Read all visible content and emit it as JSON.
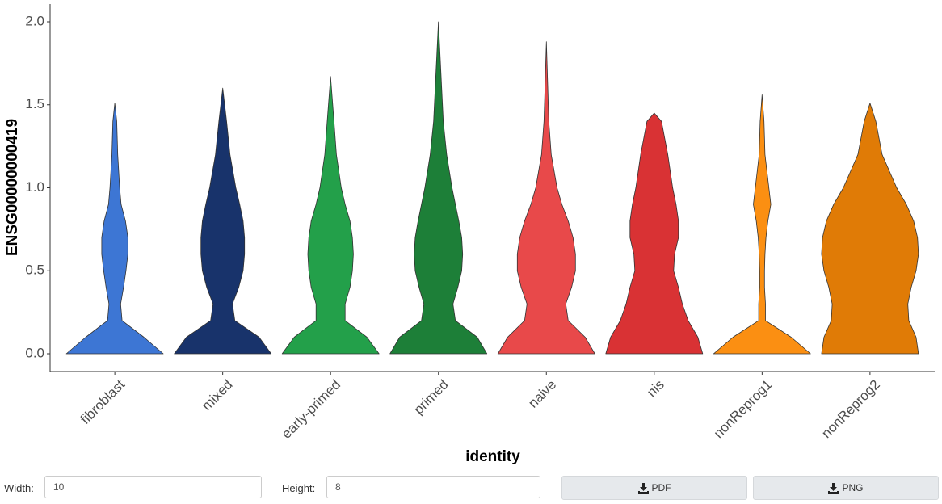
{
  "chart_data": {
    "type": "violin",
    "x_label": "identity",
    "y_label": "ENSG00000000419",
    "categories": [
      "fibroblast",
      "mixed",
      "early-primed",
      "primed",
      "naive",
      "nis",
      "nonReprog1",
      "nonReprog2"
    ],
    "colors": [
      "#3d76d4",
      "#18336b",
      "#23a04a",
      "#1d7f38",
      "#e8494a",
      "#d93234",
      "#fb8f12",
      "#e07b06"
    ],
    "density_y": [
      0,
      0.1,
      0.2,
      0.3,
      0.4,
      0.5,
      0.6,
      0.7,
      0.8,
      0.9,
      1.0,
      1.2,
      1.4
    ],
    "violins": [
      {
        "max": 1.51,
        "widths": [
          1,
          0.6,
          0.15,
          0.12,
          0.18,
          0.23,
          0.27,
          0.27,
          0.22,
          0.13,
          0.1,
          0.06,
          0.04
        ]
      },
      {
        "max": 1.6,
        "widths": [
          1,
          0.75,
          0.25,
          0.2,
          0.33,
          0.42,
          0.45,
          0.45,
          0.42,
          0.35,
          0.27,
          0.15,
          0.08
        ]
      },
      {
        "max": 1.67,
        "widths": [
          1,
          0.75,
          0.3,
          0.3,
          0.4,
          0.45,
          0.47,
          0.45,
          0.4,
          0.3,
          0.22,
          0.12,
          0.07
        ]
      },
      {
        "max": 2.0,
        "widths": [
          1,
          0.8,
          0.35,
          0.3,
          0.4,
          0.48,
          0.5,
          0.48,
          0.42,
          0.35,
          0.28,
          0.17,
          0.1
        ]
      },
      {
        "max": 1.88,
        "widths": [
          1,
          0.8,
          0.45,
          0.4,
          0.52,
          0.6,
          0.6,
          0.55,
          0.45,
          0.32,
          0.22,
          0.1,
          0.05
        ]
      },
      {
        "max": 1.45,
        "widths": [
          1,
          0.9,
          0.7,
          0.58,
          0.5,
          0.4,
          0.42,
          0.5,
          0.5,
          0.45,
          0.38,
          0.28,
          0.15
        ]
      },
      {
        "max": 1.56,
        "widths": [
          1,
          0.6,
          0.07,
          0.07,
          0.05,
          0.05,
          0.06,
          0.08,
          0.12,
          0.18,
          0.14,
          0.06,
          0.04
        ]
      },
      {
        "max": 1.51,
        "widths": [
          1,
          0.95,
          0.8,
          0.78,
          0.85,
          0.95,
          1.0,
          0.98,
          0.9,
          0.75,
          0.55,
          0.25,
          0.12
        ]
      }
    ],
    "ylim": [
      -0.107,
      2.107
    ],
    "yticks": [
      {
        "value": 0,
        "label": "0.0"
      },
      {
        "value": 0.5,
        "label": "0.5"
      },
      {
        "value": 1,
        "label": "1.0"
      },
      {
        "value": 1.5,
        "label": "1.5"
      },
      {
        "value": 2,
        "label": "2.0"
      }
    ],
    "grid": false
  },
  "controls": {
    "width_label": "Width:",
    "width_value": "10",
    "height_label": "Height:",
    "height_value": "8",
    "pdf_button": "PDF",
    "png_button": "PNG"
  }
}
